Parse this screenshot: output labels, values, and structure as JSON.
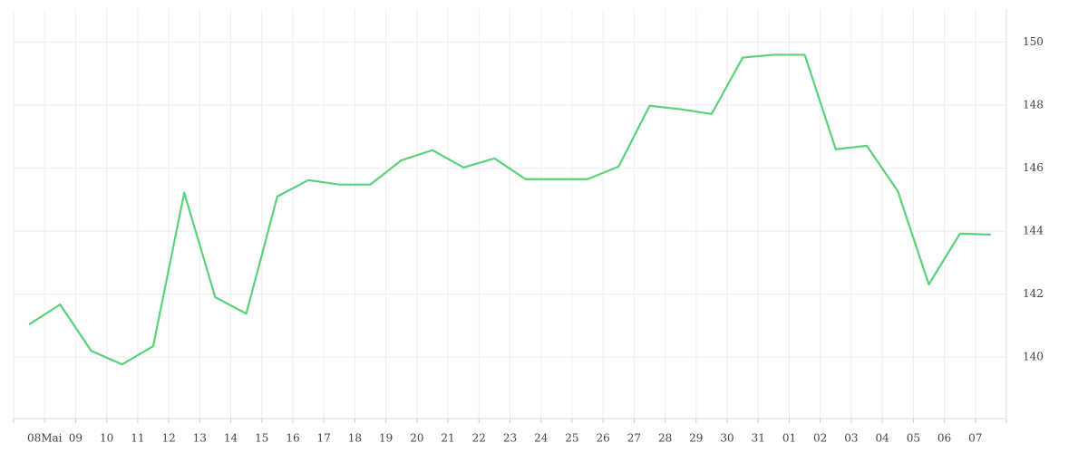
{
  "chart_data": {
    "type": "line",
    "categories": [
      null,
      null,
      null,
      null,
      null,
      null,
      null,
      null,
      null,
      null,
      null,
      null,
      null,
      null,
      null,
      null,
      null,
      null,
      null,
      null,
      null,
      null,
      null,
      null,
      null,
      null,
      null,
      null,
      null,
      null,
      null,
      null
    ],
    "xtick_labels": [
      "08Mai",
      "09",
      "10",
      "11",
      "12",
      "13",
      "14",
      "15",
      "16",
      "17",
      "18",
      "19",
      "20",
      "21",
      "22",
      "23",
      "24",
      "25",
      "26",
      "27",
      "28",
      "29",
      "30",
      "31",
      "01",
      "02",
      "03",
      "04",
      "05",
      "06",
      "07"
    ],
    "series": [
      {
        "color": "#5ad17a",
        "values": [
          141.04,
          141.67,
          140.2,
          139.77,
          140.35,
          145.22,
          141.9,
          141.38,
          145.1,
          145.62,
          145.48,
          145.48,
          146.25,
          146.57,
          146.02,
          146.31,
          145.65,
          145.65,
          145.65,
          146.05,
          147.98,
          147.87,
          147.72,
          149.51,
          149.6,
          149.6,
          146.6,
          146.71,
          145.27,
          142.31,
          143.92,
          143.89
        ]
      }
    ],
    "ylim": [
      138.05,
      151.05
    ],
    "yticks": [
      140,
      142,
      144,
      146,
      148,
      150
    ],
    "grid": true
  }
}
